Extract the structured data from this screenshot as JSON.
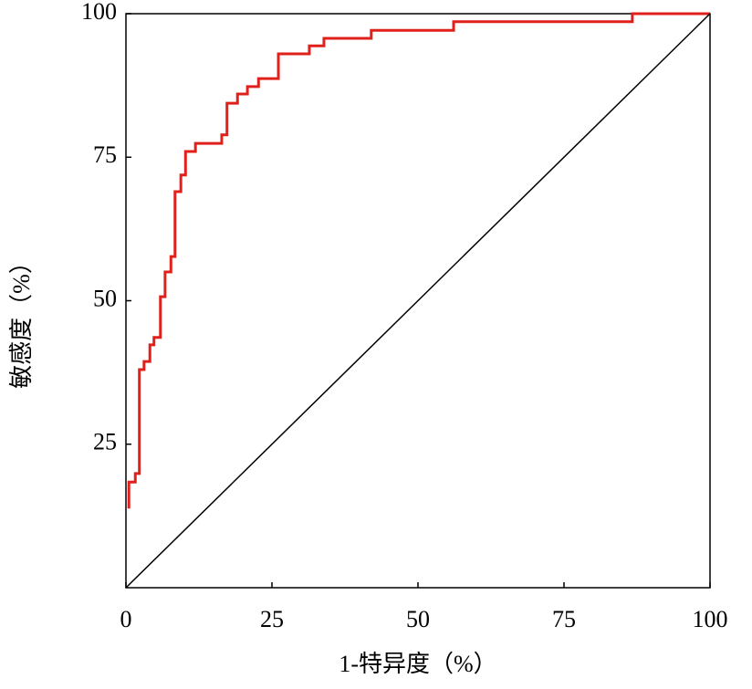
{
  "chart_data": {
    "type": "line",
    "xlabel": "1-特异度（%）",
    "ylabel": "敏感度（%）",
    "xlim": [
      0,
      100
    ],
    "ylim": [
      0,
      100
    ],
    "xticks": [
      0,
      25,
      50,
      75,
      100
    ],
    "yticks": [
      25,
      50,
      75,
      100
    ],
    "step": true,
    "series": [
      {
        "color": "#e0201b",
        "x": [
          0.5,
          0.5,
          1.6,
          1.6,
          2.3,
          2.3,
          3.1,
          3.1,
          4.1,
          4.1,
          4.8,
          4.8,
          5.9,
          5.9,
          6.7,
          6.7,
          7.7,
          7.7,
          8.4,
          8.4,
          9.4,
          9.4,
          10.2,
          10.2,
          11.9,
          11.9,
          16.4,
          16.4,
          17.3,
          17.3,
          19.1,
          19.1,
          20.8,
          20.8,
          22.7,
          22.7,
          26.1,
          26.1,
          31.4,
          31.4,
          33.9,
          33.9,
          42,
          42,
          56.1,
          56.1,
          86.7,
          86.7,
          100
        ],
        "y": [
          13.8,
          18.4,
          18.4,
          19.9,
          19.9,
          38,
          38,
          39.4,
          39.4,
          42.3,
          42.3,
          43.6,
          43.6,
          50.7,
          50.7,
          55,
          55,
          57.7,
          57.7,
          69,
          69,
          71.9,
          71.9,
          76,
          76,
          77.4,
          77.4,
          78.9,
          78.9,
          84.4,
          84.4,
          86,
          86,
          87.3,
          87.3,
          88.7,
          88.7,
          93,
          93,
          94.4,
          94.4,
          95.7,
          95.7,
          97.1,
          97.1,
          98.6,
          98.6,
          100,
          100
        ]
      },
      {
        "color": "#000000",
        "x": [
          0,
          100
        ],
        "y": [
          0,
          100
        ]
      }
    ]
  }
}
